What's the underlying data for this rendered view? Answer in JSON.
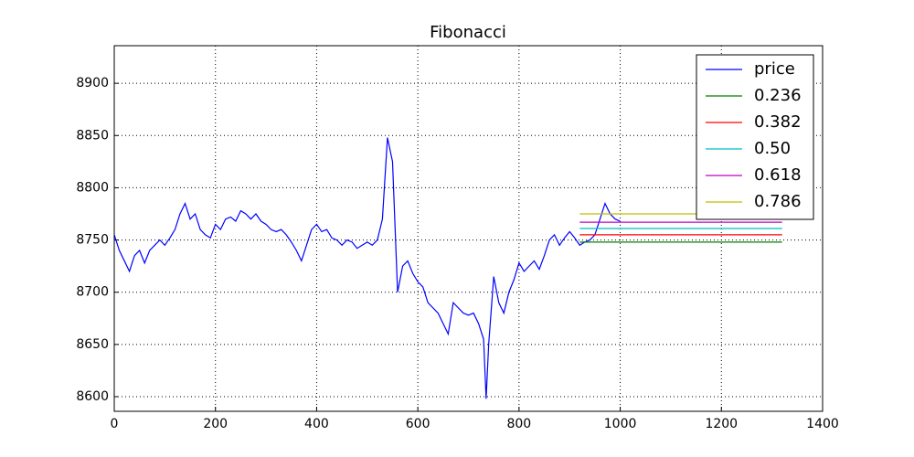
{
  "chart_data": {
    "type": "line",
    "title": "Fibonacci",
    "xlim": [
      0,
      1400
    ],
    "xticks": [
      0,
      200,
      400,
      600,
      800,
      1000,
      1200,
      1400
    ],
    "ylim": [
      8586,
      8936
    ],
    "yticks": [
      8600,
      8650,
      8700,
      8750,
      8800,
      8850,
      8900
    ],
    "grid": true,
    "legend": "upper right",
    "series": [
      {
        "name": "price",
        "color": "#0000ff",
        "x": [
          0,
          10,
          20,
          30,
          40,
          50,
          60,
          70,
          80,
          90,
          100,
          110,
          120,
          130,
          140,
          150,
          160,
          170,
          180,
          190,
          200,
          210,
          220,
          230,
          240,
          250,
          260,
          270,
          280,
          290,
          300,
          310,
          320,
          330,
          340,
          350,
          360,
          370,
          380,
          390,
          400,
          410,
          420,
          430,
          440,
          450,
          460,
          470,
          480,
          490,
          500,
          510,
          520,
          530,
          540,
          550,
          560,
          570,
          580,
          590,
          600,
          610,
          620,
          630,
          640,
          650,
          660,
          670,
          680,
          690,
          700,
          710,
          720,
          730,
          735,
          740,
          750,
          760,
          770,
          780,
          790,
          800,
          810,
          820,
          830,
          840,
          850,
          860,
          870,
          880,
          890,
          900,
          910,
          920,
          930,
          940,
          950,
          960,
          970,
          980,
          990,
          1000
        ],
        "values": [
          8755,
          8740,
          8730,
          8720,
          8735,
          8740,
          8728,
          8740,
          8745,
          8750,
          8745,
          8752,
          8760,
          8775,
          8785,
          8770,
          8775,
          8760,
          8755,
          8752,
          8765,
          8760,
          8770,
          8772,
          8768,
          8778,
          8775,
          8770,
          8775,
          8768,
          8765,
          8760,
          8758,
          8760,
          8755,
          8748,
          8740,
          8730,
          8745,
          8760,
          8765,
          8758,
          8760,
          8752,
          8750,
          8745,
          8750,
          8748,
          8742,
          8745,
          8748,
          8745,
          8750,
          8770,
          8848,
          8825,
          8700,
          8725,
          8730,
          8718,
          8710,
          8705,
          8690,
          8685,
          8680,
          8670,
          8660,
          8690,
          8685,
          8680,
          8678,
          8680,
          8670,
          8655,
          8598,
          8650,
          8715,
          8690,
          8680,
          8700,
          8712,
          8728,
          8720,
          8725,
          8730,
          8722,
          8735,
          8750,
          8755,
          8745,
          8752,
          8758,
          8752,
          8745,
          8748,
          8750,
          8755,
          8770,
          8785,
          8775,
          8770,
          8768
        ]
      },
      {
        "name": "0.236",
        "color": "#008000",
        "x": [
          920,
          1320
        ],
        "values": [
          8748,
          8748
        ]
      },
      {
        "name": "0.382",
        "color": "#ff0000",
        "x": [
          920,
          1320
        ],
        "values": [
          8755,
          8755
        ]
      },
      {
        "name": "0.50",
        "color": "#00bfbf",
        "x": [
          920,
          1320
        ],
        "values": [
          8761,
          8761
        ]
      },
      {
        "name": "0.618",
        "color": "#bf00bf",
        "x": [
          920,
          1320
        ],
        "values": [
          8767,
          8767
        ]
      },
      {
        "name": "0.786",
        "color": "#bfbf00",
        "x": [
          920,
          1320
        ],
        "values": [
          8775,
          8775
        ]
      }
    ]
  }
}
